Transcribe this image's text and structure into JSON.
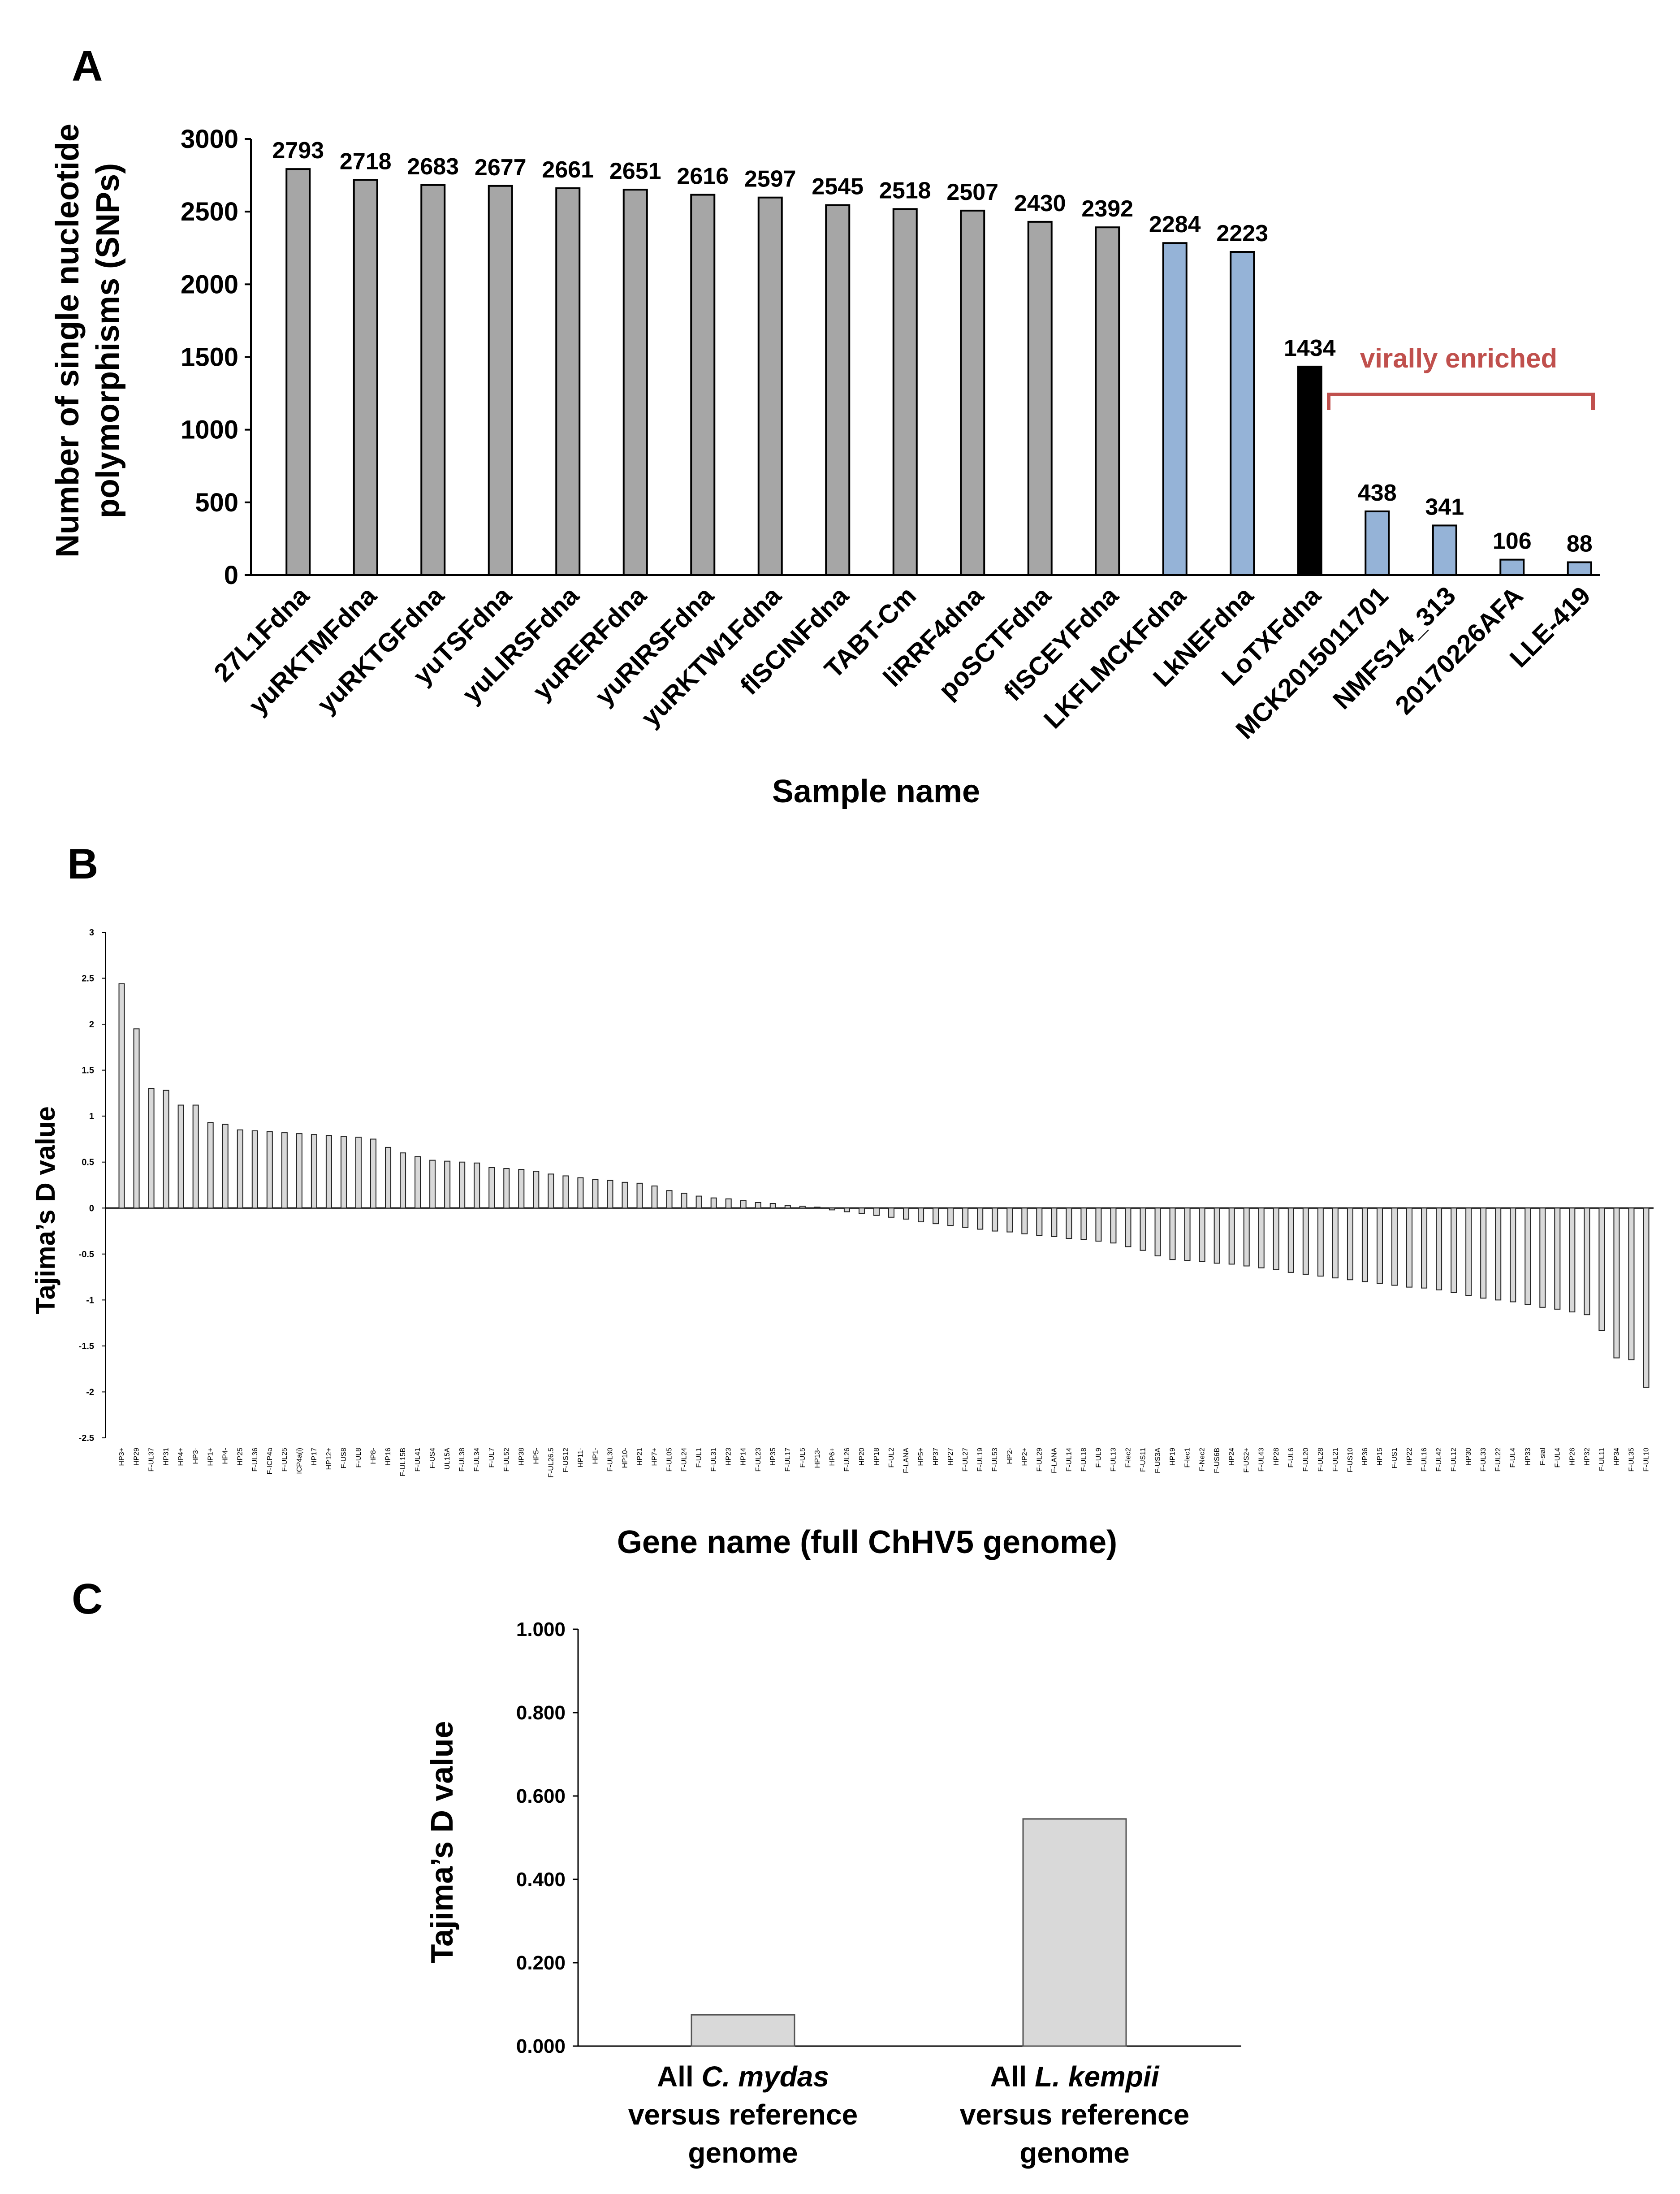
{
  "panels": {
    "a": "A",
    "b": "B",
    "c": "C"
  },
  "chart_data": [
    {
      "type": "bar",
      "panel": "A",
      "ylabel_line1": "Number of single nucleotide",
      "ylabel_line2": "polymorphisms (SNPs)",
      "xlabel": "Sample name",
      "ylim": [
        0,
        3000
      ],
      "yticks": [
        0,
        500,
        1000,
        1500,
        2000,
        2500,
        3000
      ],
      "categories": [
        "27L1Fdna",
        "yuRKTMFdna",
        "yuRKTGFdna",
        "yuTSFdna",
        "yuLIRSFdna",
        "yuRERFdna",
        "yuRIRSFdna",
        "yuRKTW1Fdna",
        "flSCINFdna",
        "TABT-Cm",
        "liRRF4dna",
        "poSCTFdna",
        "flSCEYFdna",
        "LKFLMCKFdna",
        "LkNEFdna",
        "LoTXFdna",
        "MCK2015011701",
        "NMFS14_313",
        "20170226AFA",
        "LLE-419"
      ],
      "values": [
        2793,
        2718,
        2683,
        2677,
        2661,
        2651,
        2616,
        2597,
        2545,
        2518,
        2507,
        2430,
        2392,
        2284,
        2223,
        1434,
        438,
        341,
        106,
        88
      ],
      "groups": [
        "cm",
        "cm",
        "cm",
        "cm",
        "cm",
        "cm",
        "cm",
        "cm",
        "cm",
        "cm",
        "cm",
        "cm",
        "cm",
        "lk",
        "lk",
        "ref",
        "lk",
        "lk",
        "lk",
        "lk"
      ],
      "colors": {
        "cm": "#a6a6a6",
        "lk": "#95b3d7",
        "ref": "#000000"
      },
      "annotation": "virally enriched",
      "annotation_color": "#c0504d"
    },
    {
      "type": "bar",
      "panel": "B",
      "ylabel": "Tajima’s D value",
      "xlabel": "Gene name (full ChHV5 genome)",
      "ylim": [
        -2.5,
        3
      ],
      "yticks": [
        "3",
        "2.5",
        "2",
        "1.5",
        "1",
        "0.5",
        "0",
        "-0.5",
        "-1",
        "-1.5",
        "-2",
        "-2.5"
      ],
      "categories": [
        "HP3+",
        "HP29",
        "F-UL37",
        "HP31",
        "HP4+",
        "HP3-",
        "HP1+",
        "HP4-",
        "HP25",
        "F-UL36",
        "F-ICP4a",
        "F-UL25",
        "ICP4a(i)",
        "HP17",
        "HP12+",
        "F-US8",
        "F-UL8",
        "HP8-",
        "HP16",
        "F-UL15B",
        "F-UL41",
        "F-US4",
        "UL15A",
        "F-UL38",
        "F-UL34",
        "F-UL7",
        "F-UL52",
        "HP38",
        "HP5-",
        "F-UL26.5",
        "F-US12",
        "HP11-",
        "HP1-",
        "F-UL30",
        "HP10-",
        "HP21",
        "HP7+",
        "F-UL05",
        "F-UL24",
        "F-UL1",
        "F-UL31",
        "HP23",
        "HP14",
        "F-UL23",
        "HP35",
        "F-UL17",
        "F-UL5",
        "HP13-",
        "HP6+",
        "F-UL26",
        "HP20",
        "HP18",
        "F-UL2",
        "F-LANA",
        "HP5+",
        "HP37",
        "HP27",
        "F-UL27",
        "F-UL19",
        "F-UL53",
        "HP2-",
        "HP2+",
        "F-UL29",
        "F-LANA",
        "F-UL14",
        "F-UL18",
        "F-UL9",
        "F-UL13",
        "F-lec2",
        "F-US11",
        "F-US3A",
        "HP19",
        "F-lec1",
        "F-Nec2",
        "F-US6B",
        "HP24",
        "F-US2+",
        "F-UL43",
        "HP28",
        "F-UL6",
        "F-UL20",
        "F-UL28",
        "F-UL21",
        "F-US10",
        "HP36",
        "HP15",
        "F-US1",
        "HP22",
        "F-UL16",
        "F-UL42",
        "F-UL12",
        "HP30",
        "F-UL33",
        "F-UL22",
        "F-UL4",
        "HP33",
        "F-sial",
        "F-UL4",
        "HP26",
        "HP32",
        "F-UL11",
        "HP34",
        "F-UL35",
        "F-UL10"
      ],
      "values": [
        2.44,
        1.95,
        1.3,
        1.28,
        1.12,
        1.12,
        0.93,
        0.91,
        0.85,
        0.84,
        0.83,
        0.82,
        0.81,
        0.8,
        0.79,
        0.78,
        0.77,
        0.75,
        0.66,
        0.6,
        0.56,
        0.52,
        0.51,
        0.5,
        0.49,
        0.44,
        0.43,
        0.42,
        0.4,
        0.37,
        0.35,
        0.33,
        0.31,
        0.3,
        0.28,
        0.27,
        0.24,
        0.19,
        0.16,
        0.13,
        0.11,
        0.1,
        0.08,
        0.06,
        0.05,
        0.03,
        0.02,
        0.01,
        -0.02,
        -0.04,
        -0.06,
        -0.08,
        -0.1,
        -0.12,
        -0.15,
        -0.17,
        -0.19,
        -0.21,
        -0.23,
        -0.25,
        -0.26,
        -0.28,
        -0.3,
        -0.31,
        -0.33,
        -0.34,
        -0.36,
        -0.38,
        -0.42,
        -0.46,
        -0.52,
        -0.56,
        -0.57,
        -0.58,
        -0.6,
        -0.61,
        -0.63,
        -0.65,
        -0.67,
        -0.7,
        -0.72,
        -0.74,
        -0.76,
        -0.78,
        -0.8,
        -0.82,
        -0.84,
        -0.86,
        -0.87,
        -0.89,
        -0.92,
        -0.95,
        -0.98,
        -1.0,
        -1.02,
        -1.05,
        -1.08,
        -1.1,
        -1.13,
        -1.16,
        -1.33,
        -1.63,
        -1.65,
        -1.95
      ]
    },
    {
      "type": "bar",
      "panel": "C",
      "ylabel": "Tajima’s D value",
      "ylim": [
        0,
        1.0
      ],
      "yticks": [
        "0.000",
        "0.200",
        "0.400",
        "0.600",
        "0.800",
        "1.000"
      ],
      "categories": [
        {
          "line1_pre": "All ",
          "line1_it": "C. mydas",
          "line2": "versus reference",
          "line3": "genome"
        },
        {
          "line1_pre": "All ",
          "line1_it": "L. kempii",
          "line2": "versus reference",
          "line3": "genome"
        }
      ],
      "values": [
        0.075,
        0.545
      ],
      "bar_color": "#d9d9d9"
    }
  ]
}
